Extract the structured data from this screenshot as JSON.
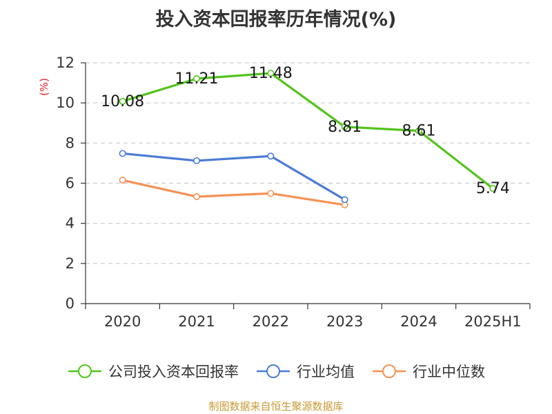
{
  "title": "投入资本回报率历年情况(%)",
  "chart_data": {
    "type": "line",
    "title": "投入资本回报率历年情况(%)",
    "ylabel": "(%)",
    "xlabel": "",
    "categories": [
      "2020",
      "2021",
      "2022",
      "2023",
      "2024",
      "2025H1"
    ],
    "ylim": [
      0,
      12
    ],
    "yticks": [
      0,
      2,
      4,
      6,
      8,
      10,
      12
    ],
    "grid": true,
    "legend_position": "bottom",
    "series": [
      {
        "name": "公司投入资本回报率",
        "color": "#52c41a",
        "values": [
          10.08,
          11.21,
          11.48,
          8.81,
          8.61,
          5.74
        ],
        "labels": [
          "10.08",
          "11.21",
          "11.48",
          "8.81",
          "8.61",
          "5.74"
        ]
      },
      {
        "name": "行业均值",
        "color": "#4a7bd6",
        "values": [
          7.48,
          7.12,
          7.35,
          5.18,
          null,
          null
        ]
      },
      {
        "name": "行业中位数",
        "color": "#f59154",
        "values": [
          6.15,
          5.33,
          5.49,
          4.92,
          null,
          null
        ]
      }
    ]
  },
  "source": "制图数据来自恒生聚源数据库"
}
